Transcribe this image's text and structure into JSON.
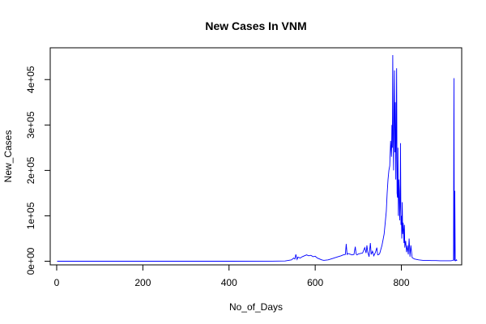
{
  "chart_data": {
    "type": "line",
    "title": "New Cases In VNM",
    "xlabel": "No_of_Days",
    "ylabel": "New_Cases",
    "xlim": [
      -15,
      940
    ],
    "ylim": [
      -8000,
      470000
    ],
    "x_ticks": [
      {
        "value": 0,
        "label": "0"
      },
      {
        "value": 200,
        "label": "200"
      },
      {
        "value": 400,
        "label": "400"
      },
      {
        "value": 600,
        "label": "600"
      },
      {
        "value": 800,
        "label": "800"
      }
    ],
    "y_ticks": [
      {
        "value": 0,
        "label": "0e+00"
      },
      {
        "value": 100000,
        "label": "1e+05"
      },
      {
        "value": 200000,
        "label": "2e+05"
      },
      {
        "value": 300000,
        "label": "3e+05"
      },
      {
        "value": 400000,
        "label": "4e+05"
      }
    ],
    "grid": false,
    "color": "#0000ff",
    "series": [
      {
        "x": [
          1,
          100,
          200,
          300,
          400,
          500,
          530,
          545,
          550,
          553,
          555,
          558,
          560,
          563,
          565,
          570,
          575,
          580,
          585,
          590,
          595,
          600,
          605,
          610,
          615,
          620,
          630,
          640,
          650,
          660,
          665,
          670,
          672,
          674,
          676,
          680,
          685,
          690,
          693,
          695,
          697,
          700,
          705,
          710,
          715,
          718,
          720,
          722,
          725,
          728,
          730,
          733,
          736,
          740,
          743,
          745,
          748,
          750,
          752,
          755,
          758,
          760,
          762,
          765,
          767,
          769,
          771,
          773,
          775,
          777,
          778,
          779,
          780,
          781,
          782,
          783,
          784,
          785,
          786,
          787,
          788,
          789,
          790,
          791,
          792,
          793,
          794,
          795,
          796,
          797,
          798,
          799,
          800,
          801,
          802,
          803,
          804,
          805,
          806,
          807,
          808,
          810,
          812,
          814,
          816,
          818,
          820,
          822,
          825,
          830,
          840,
          850,
          860,
          870,
          880,
          890,
          900,
          910,
          915,
          920,
          921,
          922,
          923,
          924,
          925,
          926,
          927,
          928,
          929
        ],
        "y": [
          0,
          0,
          0,
          0,
          0,
          100,
          500,
          3000,
          7000,
          5000,
          15000,
          4000,
          9000,
          8000,
          7000,
          10000,
          12000,
          14000,
          12000,
          13000,
          10000,
          11000,
          7000,
          5000,
          3000,
          2000,
          3000,
          6000,
          9000,
          12000,
          14000,
          15000,
          38000,
          15000,
          17000,
          16000,
          14000,
          15000,
          32000,
          16000,
          14000,
          16000,
          17000,
          18000,
          30000,
          18000,
          35000,
          20000,
          10000,
          40000,
          15000,
          22000,
          12000,
          20000,
          30000,
          14000,
          15000,
          18000,
          25000,
          35000,
          50000,
          60000,
          80000,
          110000,
          150000,
          180000,
          200000,
          210000,
          265000,
          230000,
          300000,
          250000,
          454000,
          270000,
          200000,
          330000,
          420000,
          240000,
          350000,
          180000,
          280000,
          425000,
          150000,
          140000,
          250000,
          100000,
          180000,
          155000,
          90000,
          120000,
          260000,
          80000,
          100000,
          50000,
          130000,
          60000,
          85000,
          70000,
          40000,
          80000,
          30000,
          45000,
          20000,
          35000,
          15000,
          50000,
          10000,
          35000,
          8000,
          5000,
          3000,
          2000,
          2000,
          1500,
          1500,
          1000,
          1000,
          1000,
          1000,
          2000,
          3000,
          403000,
          1000,
          155000,
          1000,
          1000,
          2000,
          3000,
          1000
        ]
      }
    ]
  }
}
